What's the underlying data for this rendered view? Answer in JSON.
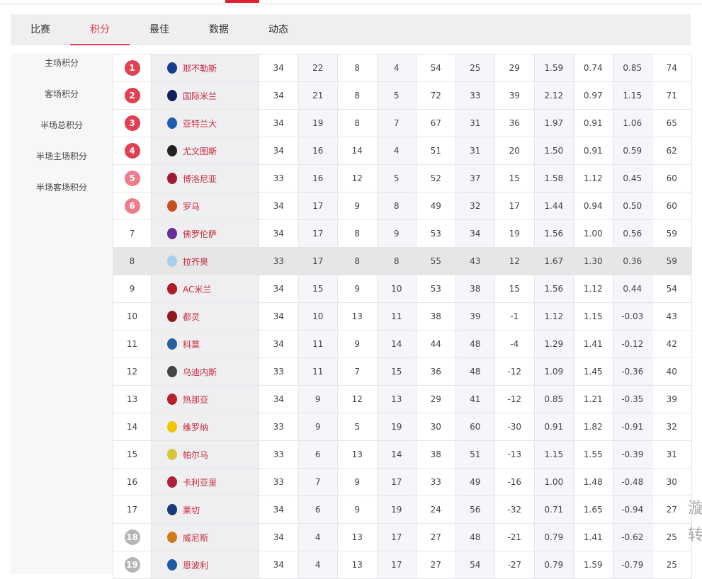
{
  "tabs": [
    "比赛",
    "积分",
    "最佳",
    "数据",
    "动态"
  ],
  "active_tab": 1,
  "side_menu": [
    "主场积分",
    "客场积分",
    "半场总积分",
    "半场主场积分",
    "半场客场积分"
  ],
  "colors": {
    "accent": "#e04050",
    "top4": "#e04050",
    "europa": "#ee7d8a",
    "relegation": "#b5b5b5"
  },
  "rows": [
    {
      "rank": "1",
      "badge": "top4",
      "team": "那不勒斯",
      "logo": "#1a3d8f",
      "stats": [
        "34",
        "22",
        "8",
        "4",
        "54",
        "25",
        "29",
        "1.59",
        "0.74",
        "0.85",
        "74"
      ]
    },
    {
      "rank": "2",
      "badge": "top4",
      "team": "国际米兰",
      "logo": "#10205a",
      "stats": [
        "34",
        "21",
        "8",
        "5",
        "72",
        "33",
        "39",
        "2.12",
        "0.97",
        "1.15",
        "71"
      ]
    },
    {
      "rank": "3",
      "badge": "top4",
      "team": "亚特兰大",
      "logo": "#1e5fb0",
      "stats": [
        "34",
        "19",
        "8",
        "7",
        "67",
        "31",
        "36",
        "1.97",
        "0.91",
        "1.06",
        "65"
      ]
    },
    {
      "rank": "4",
      "badge": "top4",
      "team": "尤文图斯",
      "logo": "#222222",
      "stats": [
        "34",
        "16",
        "14",
        "4",
        "51",
        "31",
        "20",
        "1.50",
        "0.91",
        "0.59",
        "62"
      ]
    },
    {
      "rank": "5",
      "badge": "europa",
      "team": "博洛尼亚",
      "logo": "#9e1b32",
      "stats": [
        "33",
        "16",
        "12",
        "5",
        "52",
        "37",
        "15",
        "1.58",
        "1.12",
        "0.45",
        "60"
      ]
    },
    {
      "rank": "6",
      "badge": "europa",
      "team": "罗马",
      "logo": "#c9501c",
      "stats": [
        "34",
        "17",
        "9",
        "8",
        "49",
        "32",
        "17",
        "1.44",
        "0.94",
        "0.50",
        "60"
      ]
    },
    {
      "rank": "7",
      "badge": "",
      "team": "佛罗伦萨",
      "logo": "#6a2b9a",
      "stats": [
        "34",
        "17",
        "8",
        "9",
        "53",
        "34",
        "19",
        "1.56",
        "1.00",
        "0.56",
        "59"
      ]
    },
    {
      "rank": "8",
      "badge": "",
      "team": "拉齐奥",
      "logo": "#a8d0ee",
      "stats": [
        "33",
        "17",
        "8",
        "8",
        "55",
        "43",
        "12",
        "1.67",
        "1.30",
        "0.36",
        "59"
      ]
    },
    {
      "rank": "9",
      "badge": "",
      "team": "AC米兰",
      "logo": "#b01c24",
      "stats": [
        "34",
        "15",
        "9",
        "10",
        "53",
        "38",
        "15",
        "1.56",
        "1.12",
        "0.44",
        "54"
      ]
    },
    {
      "rank": "10",
      "badge": "",
      "team": "都灵",
      "logo": "#8b1a1a",
      "stats": [
        "34",
        "10",
        "13",
        "11",
        "38",
        "39",
        "-1",
        "1.12",
        "1.15",
        "-0.03",
        "43"
      ]
    },
    {
      "rank": "11",
      "badge": "",
      "team": "科莫",
      "logo": "#2a5f9e",
      "stats": [
        "34",
        "11",
        "9",
        "14",
        "44",
        "48",
        "-4",
        "1.29",
        "1.41",
        "-0.12",
        "42"
      ]
    },
    {
      "rank": "12",
      "badge": "",
      "team": "乌迪内斯",
      "logo": "#444444",
      "stats": [
        "33",
        "11",
        "7",
        "15",
        "36",
        "48",
        "-12",
        "1.09",
        "1.45",
        "-0.36",
        "40"
      ]
    },
    {
      "rank": "13",
      "badge": "",
      "team": "热那亚",
      "logo": "#b8202c",
      "stats": [
        "34",
        "9",
        "12",
        "13",
        "29",
        "41",
        "-12",
        "0.85",
        "1.21",
        "-0.35",
        "39"
      ]
    },
    {
      "rank": "14",
      "badge": "",
      "team": "维罗纳",
      "logo": "#f2c500",
      "stats": [
        "33",
        "9",
        "5",
        "19",
        "30",
        "60",
        "-30",
        "0.91",
        "1.82",
        "-0.91",
        "32"
      ]
    },
    {
      "rank": "15",
      "badge": "",
      "team": "帕尔马",
      "logo": "#d8c43a",
      "stats": [
        "33",
        "6",
        "13",
        "14",
        "38",
        "51",
        "-13",
        "1.15",
        "1.55",
        "-0.39",
        "31"
      ]
    },
    {
      "rank": "16",
      "badge": "",
      "team": "卡利亚里",
      "logo": "#b0203a",
      "stats": [
        "33",
        "7",
        "9",
        "17",
        "33",
        "49",
        "-16",
        "1.00",
        "1.48",
        "-0.48",
        "30"
      ]
    },
    {
      "rank": "17",
      "badge": "",
      "team": "莱切",
      "logo": "#1b3a7a",
      "stats": [
        "34",
        "6",
        "9",
        "19",
        "24",
        "56",
        "-32",
        "0.71",
        "1.65",
        "-0.94",
        "27"
      ]
    },
    {
      "rank": "18",
      "badge": "relegation",
      "team": "威尼斯",
      "logo": "#d07a1a",
      "stats": [
        "34",
        "4",
        "13",
        "17",
        "27",
        "48",
        "-21",
        "0.79",
        "1.41",
        "-0.62",
        "25"
      ]
    },
    {
      "rank": "19",
      "badge": "relegation",
      "team": "恩波利",
      "logo": "#1e5aa8",
      "stats": [
        "34",
        "4",
        "13",
        "17",
        "27",
        "54",
        "-27",
        "0.79",
        "1.59",
        "-0.79",
        "25"
      ]
    }
  ],
  "highlight_row": 7,
  "edge_text": [
    "漩",
    "转"
  ]
}
